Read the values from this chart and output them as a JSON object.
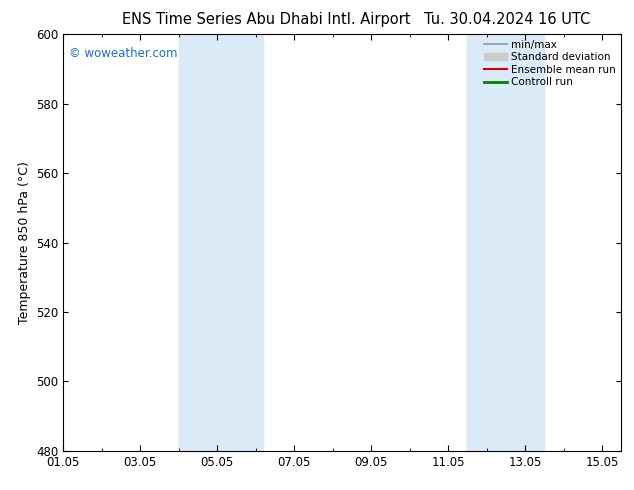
{
  "title_left": "ENS Time Series Abu Dhabi Intl. Airport",
  "title_right": "Tu. 30.04.2024 16 UTC",
  "ylabel": "Temperature 850 hPa (°C)",
  "watermark": "© woweather.com",
  "ylim": [
    480,
    600
  ],
  "yticks": [
    480,
    500,
    520,
    540,
    560,
    580,
    600
  ],
  "xlim": [
    0,
    14.5
  ],
  "xtick_labels": [
    "01.05",
    "03.05",
    "05.05",
    "07.05",
    "09.05",
    "11.05",
    "13.05",
    "15.05"
  ],
  "xtick_positions": [
    0,
    2,
    4,
    6,
    8,
    10,
    12,
    14
  ],
  "shaded_bands": [
    {
      "x_start": 3.0,
      "x_end": 5.2,
      "color": "#daeaf7"
    },
    {
      "x_start": 10.5,
      "x_end": 12.5,
      "color": "#daeaf7"
    }
  ],
  "legend_entries": [
    {
      "label": "min/max",
      "color": "#999999",
      "lw": 1.2,
      "type": "line"
    },
    {
      "label": "Standard deviation",
      "color": "#cccccc",
      "lw": 6,
      "type": "rect"
    },
    {
      "label": "Ensemble mean run",
      "color": "#cc0000",
      "lw": 1.5,
      "type": "line"
    },
    {
      "label": "Controll run",
      "color": "#008000",
      "lw": 2,
      "type": "line"
    }
  ],
  "bg_color": "#ffffff",
  "watermark_color": "#1a6fc4",
  "title_fontsize": 10.5,
  "ylabel_fontsize": 9,
  "tick_fontsize": 8.5,
  "watermark_fontsize": 8.5,
  "legend_fontsize": 7.5
}
